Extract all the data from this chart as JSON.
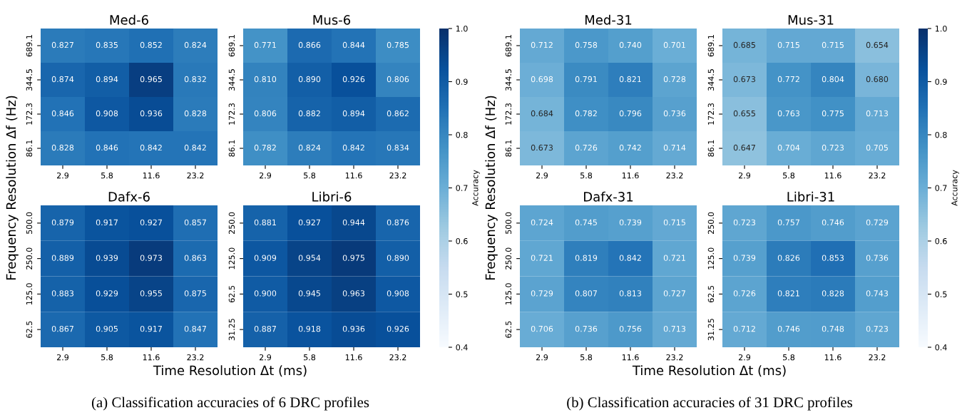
{
  "chart_data": [
    {
      "type": "heatmap",
      "title": "Med-6",
      "ylabel": "Frequency Resolution Δf (Hz)",
      "categories": [
        "2.9",
        "5.8",
        "11.6",
        "23.2"
      ],
      "y_categories": [
        "689.1",
        "344.5",
        "172.3",
        "86.1"
      ],
      "cells": [
        [
          0.827,
          0.835,
          0.852,
          0.824
        ],
        [
          0.874,
          0.894,
          0.965,
          0.832
        ],
        [
          0.846,
          0.908,
          0.936,
          0.828
        ],
        [
          0.828,
          0.846,
          0.842,
          0.842
        ]
      ],
      "cell_labels": [
        [
          "0.827",
          "0.835",
          "0.852",
          "0.824"
        ],
        [
          "0.874",
          "0.894",
          "0.965",
          "0.832"
        ],
        [
          "0.846",
          "0.908",
          "0.936",
          "0.828"
        ],
        [
          "0.828",
          "0.846",
          "0.842",
          "0.842"
        ]
      ],
      "data_labels": true
    },
    {
      "type": "heatmap",
      "title": "Mus-6",
      "clabel": "Accuracy",
      "clim": [
        0.4,
        1.0
      ],
      "cticks": [
        0.4,
        0.5,
        0.6,
        0.7,
        0.8,
        0.9,
        {
          "value": 1.0,
          "label": "1.0"
        }
      ],
      "categories": [
        "2.9",
        "5.8",
        "11.6",
        "23.2"
      ],
      "y_categories": [
        "689.1",
        "344.5",
        "172.3",
        "86.1"
      ],
      "cells": [
        [
          0.771,
          0.866,
          0.844,
          0.785
        ],
        [
          0.81,
          0.89,
          0.926,
          0.806
        ],
        [
          0.806,
          0.882,
          0.894,
          0.862
        ],
        [
          0.782,
          0.824,
          0.842,
          0.834
        ]
      ],
      "cell_labels": [
        [
          "0.771",
          "0.866",
          "0.844",
          "0.785"
        ],
        [
          "0.810",
          "0.890",
          "0.926",
          "0.806"
        ],
        [
          "0.806",
          "0.882",
          "0.894",
          "0.862"
        ],
        [
          "0.782",
          "0.824",
          "0.842",
          "0.834"
        ]
      ],
      "data_labels": true
    },
    {
      "type": "heatmap",
      "title": "Med-31",
      "ylabel": "Frequency Resolution Δf (Hz)",
      "categories": [
        "2.9",
        "5.8",
        "11.6",
        "23.2"
      ],
      "y_categories": [
        "689.1",
        "344.5",
        "172.3",
        "86.1"
      ],
      "cells": [
        [
          0.712,
          0.758,
          0.74,
          0.701
        ],
        [
          0.698,
          0.791,
          0.821,
          0.728
        ],
        [
          0.684,
          0.782,
          0.796,
          0.736
        ],
        [
          0.673,
          0.726,
          0.742,
          0.714
        ]
      ],
      "cell_labels": [
        [
          "0.712",
          "0.758",
          "0.740",
          "0.701"
        ],
        [
          "0.698",
          "0.791",
          "0.821",
          "0.728"
        ],
        [
          "0.684",
          "0.782",
          "0.796",
          "0.736"
        ],
        [
          "0.673",
          "0.726",
          "0.742",
          "0.714"
        ]
      ],
      "data_labels": true
    },
    {
      "type": "heatmap",
      "title": "Mus-31",
      "clabel": "Accuracy",
      "clim": [
        0.4,
        1.0
      ],
      "cticks": [
        0.4,
        0.5,
        0.6,
        0.7,
        0.8,
        0.9,
        {
          "value": 1.0,
          "label": "1.0"
        }
      ],
      "categories": [
        "2.9",
        "5.8",
        "11.6",
        "23.2"
      ],
      "y_categories": [
        "689.1",
        "344.5",
        "172.3",
        "86.1"
      ],
      "cells": [
        [
          0.685,
          0.715,
          0.715,
          0.654
        ],
        [
          0.673,
          0.772,
          0.804,
          0.68
        ],
        [
          0.655,
          0.763,
          0.775,
          0.713
        ],
        [
          0.647,
          0.704,
          0.723,
          0.705
        ]
      ],
      "cell_labels": [
        [
          "0.685",
          "0.715",
          "0.715",
          "0.654"
        ],
        [
          "0.673",
          "0.772",
          "0.804",
          "0.680"
        ],
        [
          "0.655",
          "0.763",
          "0.775",
          "0.713"
        ],
        [
          "0.647",
          "0.704",
          "0.723",
          "0.705"
        ]
      ],
      "data_labels": true
    },
    {
      "type": "heatmap",
      "title": "Dafx-6",
      "xlabel": "Time Resolution Δt (ms)",
      "categories": [
        "2.9",
        "5.8",
        "11.6",
        "23.2"
      ],
      "y_categories": [
        "500.0",
        "250.0",
        "125.0",
        "62.5"
      ],
      "cells": [
        [
          0.879,
          0.917,
          0.927,
          0.857
        ],
        [
          0.889,
          0.939,
          0.973,
          0.863
        ],
        [
          0.883,
          0.929,
          0.955,
          0.875
        ],
        [
          0.867,
          0.905,
          0.917,
          0.847
        ]
      ],
      "cell_labels": [
        [
          "0.879",
          "0.917",
          "0.927",
          "0.857"
        ],
        [
          "0.889",
          "0.939",
          "0.973",
          "0.863"
        ],
        [
          "0.883",
          "0.929",
          "0.955",
          "0.875"
        ],
        [
          "0.867",
          "0.905",
          "0.917",
          "0.847"
        ]
      ],
      "data_labels": true
    },
    {
      "type": "heatmap",
      "title": "Libri-6",
      "annotations": [
        "(a) Classification accuracies of 6 DRC profiles"
      ],
      "categories": [
        "2.9",
        "5.8",
        "11.6",
        "23.2"
      ],
      "y_categories": [
        "250.0",
        "125.0",
        "62.5",
        "31.25"
      ],
      "cells": [
        [
          0.881,
          0.927,
          0.944,
          0.876
        ],
        [
          0.909,
          0.954,
          0.975,
          0.89
        ],
        [
          0.9,
          0.945,
          0.963,
          0.908
        ],
        [
          0.887,
          0.918,
          0.936,
          0.926
        ]
      ],
      "cell_labels": [
        [
          "0.881",
          "0.927",
          "0.944",
          "0.876"
        ],
        [
          "0.909",
          "0.954",
          "0.975",
          "0.890"
        ],
        [
          "0.900",
          "0.945",
          "0.963",
          "0.908"
        ],
        [
          "0.887",
          "0.918",
          "0.936",
          "0.926"
        ]
      ],
      "data_labels": true
    },
    {
      "type": "heatmap",
      "title": "Dafx-31",
      "xlabel": "Time Resolution Δt (ms)",
      "categories": [
        "2.9",
        "5.8",
        "11.6",
        "23.2"
      ],
      "y_categories": [
        "500.0",
        "250.0",
        "125.0",
        "62.5"
      ],
      "cells": [
        [
          0.724,
          0.745,
          0.739,
          0.715
        ],
        [
          0.721,
          0.819,
          0.842,
          0.721
        ],
        [
          0.729,
          0.807,
          0.813,
          0.727
        ],
        [
          0.706,
          0.736,
          0.756,
          0.713
        ]
      ],
      "cell_labels": [
        [
          "0.724",
          "0.745",
          "0.739",
          "0.715"
        ],
        [
          "0.721",
          "0.819",
          "0.842",
          "0.721"
        ],
        [
          "0.729",
          "0.807",
          "0.813",
          "0.727"
        ],
        [
          "0.706",
          "0.736",
          "0.756",
          "0.713"
        ]
      ],
      "data_labels": true
    },
    {
      "type": "heatmap",
      "title": "Libri-31",
      "annotations": [
        "(b) Classification accuracies of 31 DRC profiles"
      ],
      "categories": [
        "2.9",
        "5.8",
        "11.6",
        "23.2"
      ],
      "y_categories": [
        "250.0",
        "125.0",
        "62.5",
        "31.25"
      ],
      "cells": [
        [
          0.723,
          0.757,
          0.746,
          0.729
        ],
        [
          0.739,
          0.826,
          0.853,
          0.736
        ],
        [
          0.726,
          0.821,
          0.828,
          0.743
        ],
        [
          0.712,
          0.746,
          0.748,
          0.723
        ]
      ],
      "cell_labels": [
        [
          "0.723",
          "0.757",
          "0.746",
          "0.729"
        ],
        [
          "0.739",
          "0.826",
          "0.853",
          "0.736"
        ],
        [
          "0.726",
          "0.821",
          "0.828",
          "0.743"
        ],
        [
          "0.712",
          "0.746",
          "0.748",
          "0.723"
        ]
      ],
      "data_labels": true
    }
  ]
}
